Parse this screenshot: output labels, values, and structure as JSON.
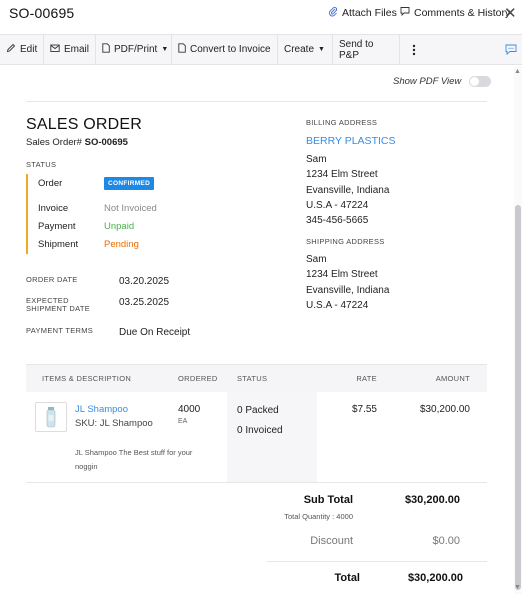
{
  "header": {
    "title": "SO-00695",
    "attach_label": "Attach Files",
    "comments_label": "Comments & History"
  },
  "toolbar": {
    "edit": "Edit",
    "email": "Email",
    "pdf_print": "PDF/Print",
    "convert": "Convert to Invoice",
    "create": "Create",
    "send": "Send to P&P"
  },
  "pdf_view": {
    "label": "Show PDF View",
    "enabled": false
  },
  "order": {
    "heading": "SALES ORDER",
    "number_prefix": "Sales Order#",
    "number": "SO-00695",
    "status_label": "STATUS",
    "status_rows": [
      {
        "label": "Order",
        "value": "CONFIRMED",
        "color": "#1e88e5"
      },
      {
        "label": "Invoice",
        "value": "Not Invoiced",
        "color": "#8a8a8a"
      },
      {
        "label": "Payment",
        "value": "Unpaid",
        "color": "#4caf50"
      },
      {
        "label": "Shipment",
        "value": "Pending",
        "color": "#ef6c00"
      }
    ],
    "order_date_label": "ORDER DATE",
    "order_date": "03.20.2025",
    "expected_label_1": "EXPECTED",
    "expected_label_2": "SHIPMENT DATE",
    "expected_date": "03.25.2025",
    "terms_label": "PAYMENT TERMS",
    "terms": "Due On Receipt"
  },
  "billing": {
    "label": "BILLING ADDRESS",
    "company": "BERRY PLASTICS",
    "lines": [
      "Sam",
      "1234 Elm Street",
      "Evansville, Indiana",
      "U.S.A - 47224",
      "345-456-5665"
    ]
  },
  "shipping": {
    "label": "SHIPPING ADDRESS",
    "lines": [
      "Sam",
      "1234 Elm Street",
      "Evansville, Indiana",
      "U.S.A - 47224"
    ]
  },
  "items_table": {
    "headers": {
      "item": "ITEMS & DESCRIPTION",
      "ordered": "ORDERED",
      "status": "STATUS",
      "rate": "RATE",
      "amount": "AMOUNT"
    },
    "rows": [
      {
        "name": "JL Shampoo",
        "sku": "SKU: JL Shampoo",
        "description": "JL Shampoo The Best stuff for your noggin",
        "qty": "4000",
        "unit": "EA",
        "packed": "0 Packed",
        "invoiced": "0 Invoiced",
        "rate": "$7.55",
        "amount": "$30,200.00"
      }
    ]
  },
  "totals": {
    "sub_total_label": "Sub Total",
    "sub_total": "$30,200.00",
    "total_quantity": "Total Quantity : 4000",
    "discount_label": "Discount",
    "discount": "$0.00",
    "total_label": "Total",
    "total": "$30,200.00"
  },
  "colors": {
    "accent_blue": "#3b8be0",
    "status_bar": "#f5a623"
  }
}
